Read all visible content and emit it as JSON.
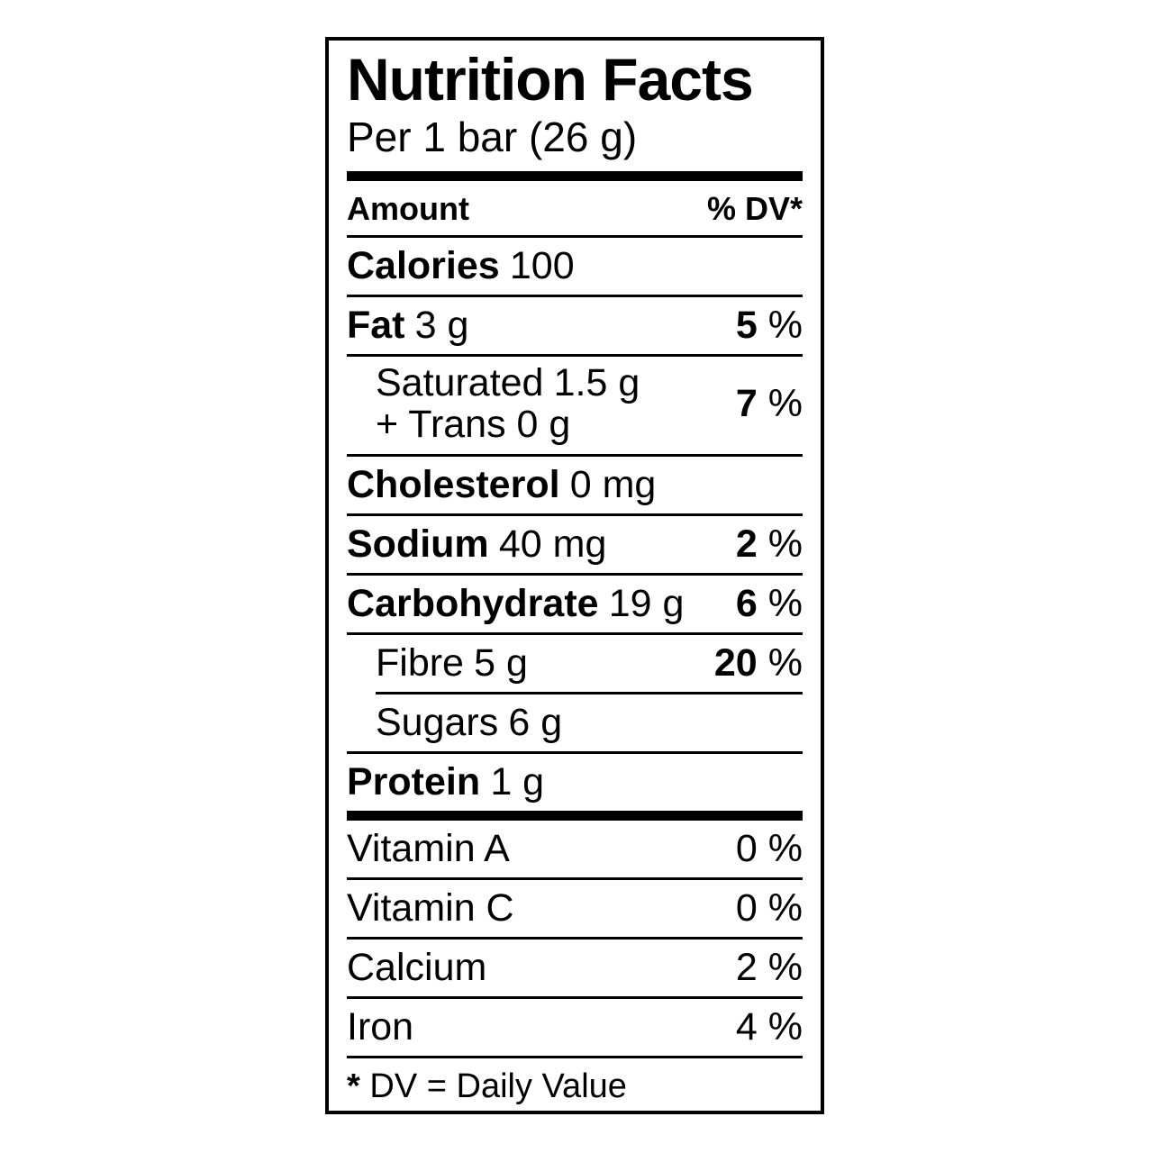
{
  "title": "Nutrition Facts",
  "serving": "Per 1 bar (26 g)",
  "columns": {
    "amount": "Amount",
    "dv": "% DV*"
  },
  "percent_sign": "%",
  "rows": {
    "calories": {
      "name": "Calories",
      "value": "100"
    },
    "fat": {
      "name": "Fat",
      "value": "3 g",
      "dv": "5"
    },
    "saturated": {
      "name": "Saturated",
      "value": "1.5 g",
      "line2": "+ Trans 0 g",
      "dv": "7"
    },
    "cholesterol": {
      "name": "Cholesterol",
      "value": "0 mg"
    },
    "sodium": {
      "name": "Sodium",
      "value": "40 mg",
      "dv": "2"
    },
    "carbohydrate": {
      "name": "Carbohydrate",
      "value": "19 g",
      "dv": "6"
    },
    "fibre": {
      "name": "Fibre",
      "value": "5 g",
      "dv": "20"
    },
    "sugars": {
      "name": "Sugars",
      "value": "6 g"
    },
    "protein": {
      "name": "Protein",
      "value": "1 g"
    }
  },
  "micronutrients": {
    "vitamin_a": {
      "name": "Vitamin A",
      "dv": "0"
    },
    "vitamin_c": {
      "name": "Vitamin C",
      "dv": "0"
    },
    "calcium": {
      "name": "Calcium",
      "dv": "2"
    },
    "iron": {
      "name": "Iron",
      "dv": "4"
    }
  },
  "footnote": {
    "symbol": "*",
    "text": "DV = Daily Value"
  },
  "colors": {
    "ink": "#000000",
    "background": "#ffffff"
  }
}
